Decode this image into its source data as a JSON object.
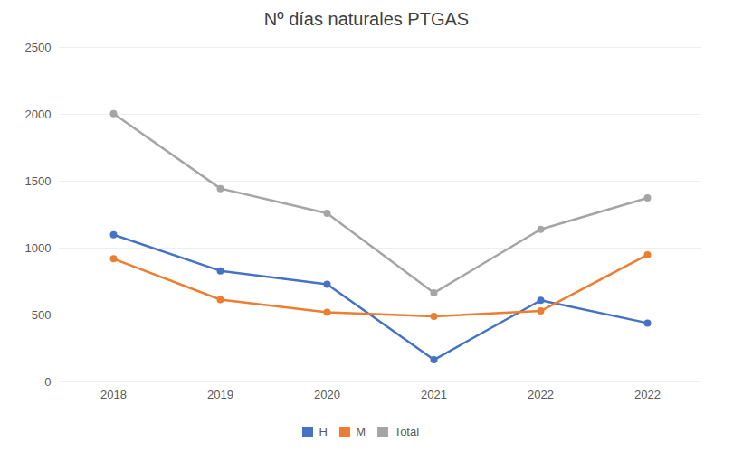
{
  "chart_data": {
    "type": "line",
    "title": "Nº días naturales PTGAS",
    "categories": [
      "2018",
      "2019",
      "2020",
      "2021",
      "2022",
      "2022"
    ],
    "series": [
      {
        "name": "H",
        "color": "#4472c4",
        "values": [
          1100,
          830,
          730,
          165,
          610,
          440
        ]
      },
      {
        "name": "M",
        "color": "#ed7d31",
        "values": [
          920,
          615,
          520,
          490,
          530,
          950
        ]
      },
      {
        "name": "Total",
        "color": "#a5a5a5",
        "values": [
          2005,
          1445,
          1260,
          665,
          1140,
          1375
        ]
      }
    ],
    "ylim": [
      0,
      2500
    ],
    "yticks": [
      0,
      500,
      1000,
      1500,
      2000,
      2500
    ],
    "grid": true,
    "legend": "bottom",
    "marker": "circle"
  }
}
